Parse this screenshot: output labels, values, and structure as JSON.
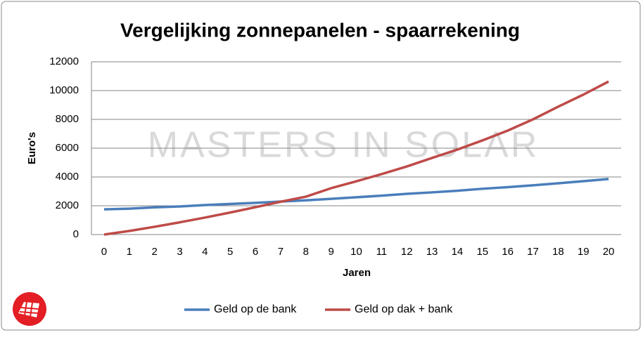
{
  "chart_data": {
    "type": "line",
    "title": "Vergelijking zonnepanelen - spaarrekening",
    "watermark": "MASTERS IN SOLAR",
    "x_label": "Jaren",
    "y_label": "Euro's",
    "categories": [
      "0",
      "1",
      "2",
      "3",
      "4",
      "5",
      "6",
      "7",
      "8",
      "9",
      "10",
      "11",
      "12",
      "13",
      "14",
      "15",
      "16",
      "17",
      "18",
      "19",
      "20"
    ],
    "series": [
      {
        "name": "Geld op de bank",
        "color": "#4a7ebb",
        "values": [
          1750,
          1800,
          1890,
          1950,
          2050,
          2130,
          2200,
          2290,
          2380,
          2480,
          2590,
          2700,
          2830,
          2930,
          3040,
          3180,
          3290,
          3420,
          3560,
          3710,
          3860
        ]
      },
      {
        "name": "Geld op dak + bank",
        "color": "#be4b48",
        "values": [
          0,
          250,
          540,
          850,
          1180,
          1530,
          1900,
          2280,
          2630,
          3220,
          3700,
          4200,
          4730,
          5320,
          5900,
          6540,
          7220,
          8000,
          8880,
          9720,
          10630
        ]
      }
    ],
    "ylim": [
      0,
      12000
    ],
    "yticks": [
      0,
      2000,
      4000,
      6000,
      8000,
      10000,
      12000
    ],
    "grid": true,
    "legend": "bottom"
  }
}
